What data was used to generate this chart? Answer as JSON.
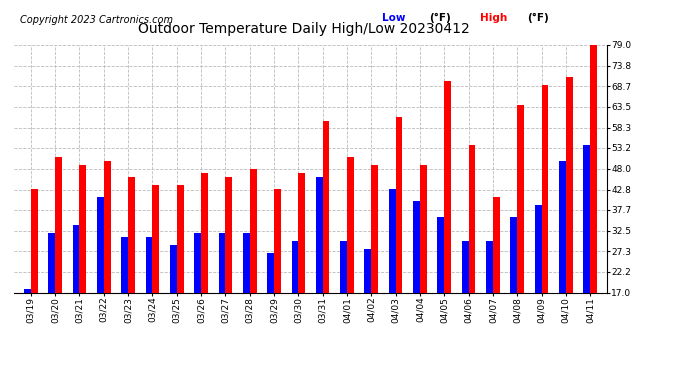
{
  "title": "Outdoor Temperature Daily High/Low 20230412",
  "copyright": "Copyright 2023 Cartronics.com",
  "legend_low": "Low",
  "legend_high": "High",
  "legend_unit": "(°F)",
  "dates": [
    "03/19",
    "03/20",
    "03/21",
    "03/22",
    "03/23",
    "03/24",
    "03/25",
    "03/26",
    "03/27",
    "03/28",
    "03/29",
    "03/30",
    "03/31",
    "04/01",
    "04/02",
    "04/03",
    "04/04",
    "04/05",
    "04/06",
    "04/07",
    "04/08",
    "04/09",
    "04/10",
    "04/11"
  ],
  "highs": [
    43,
    51,
    49,
    50,
    46,
    44,
    44,
    47,
    46,
    48,
    43,
    47,
    60,
    51,
    49,
    61,
    49,
    70,
    54,
    41,
    64,
    69,
    71,
    79
  ],
  "lows": [
    18,
    32,
    34,
    41,
    31,
    31,
    29,
    32,
    32,
    32,
    27,
    30,
    46,
    30,
    28,
    43,
    40,
    36,
    30,
    30,
    36,
    39,
    50,
    54
  ],
  "ylim_min": 17.0,
  "ylim_max": 79.0,
  "yticks": [
    17.0,
    22.2,
    27.3,
    32.5,
    37.7,
    42.8,
    48.0,
    53.2,
    58.3,
    63.5,
    68.7,
    73.8,
    79.0
  ],
  "bar_width": 0.28,
  "high_color": "#ff0000",
  "low_color": "#0000ff",
  "bg_color": "#ffffff",
  "grid_color": "#bbbbbb",
  "title_fontsize": 10,
  "copyright_fontsize": 7,
  "tick_fontsize": 6.5,
  "legend_fontsize": 7.5
}
